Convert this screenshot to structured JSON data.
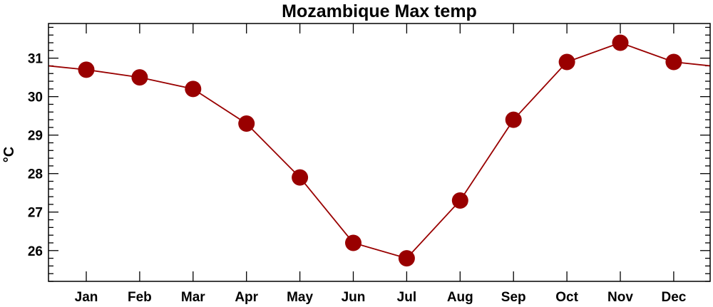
{
  "chart_data": {
    "type": "line",
    "title": "Mozambique Max temp",
    "xlabel": "",
    "ylabel": "°C",
    "categories": [
      "Jan",
      "Feb",
      "Mar",
      "Apr",
      "May",
      "Jun",
      "Jul",
      "Aug",
      "Sep",
      "Oct",
      "Nov",
      "Dec"
    ],
    "series": [
      {
        "values": [
          30.7,
          30.5,
          30.2,
          29.3,
          27.9,
          26.2,
          25.8,
          27.3,
          29.4,
          30.9,
          31.4,
          30.9
        ]
      }
    ],
    "edge_values": {
      "start": 30.8,
      "end": 30.8
    },
    "ylim": [
      25.2,
      31.9
    ],
    "yticks": [
      26,
      27,
      28,
      29,
      30,
      31
    ],
    "ytick_labels": [
      "26",
      "27",
      "28",
      "29",
      "30",
      "31"
    ],
    "grid": false,
    "legend": "none",
    "colors": {
      "series": "#990000",
      "line": "#990000",
      "axis": "#000000"
    }
  }
}
